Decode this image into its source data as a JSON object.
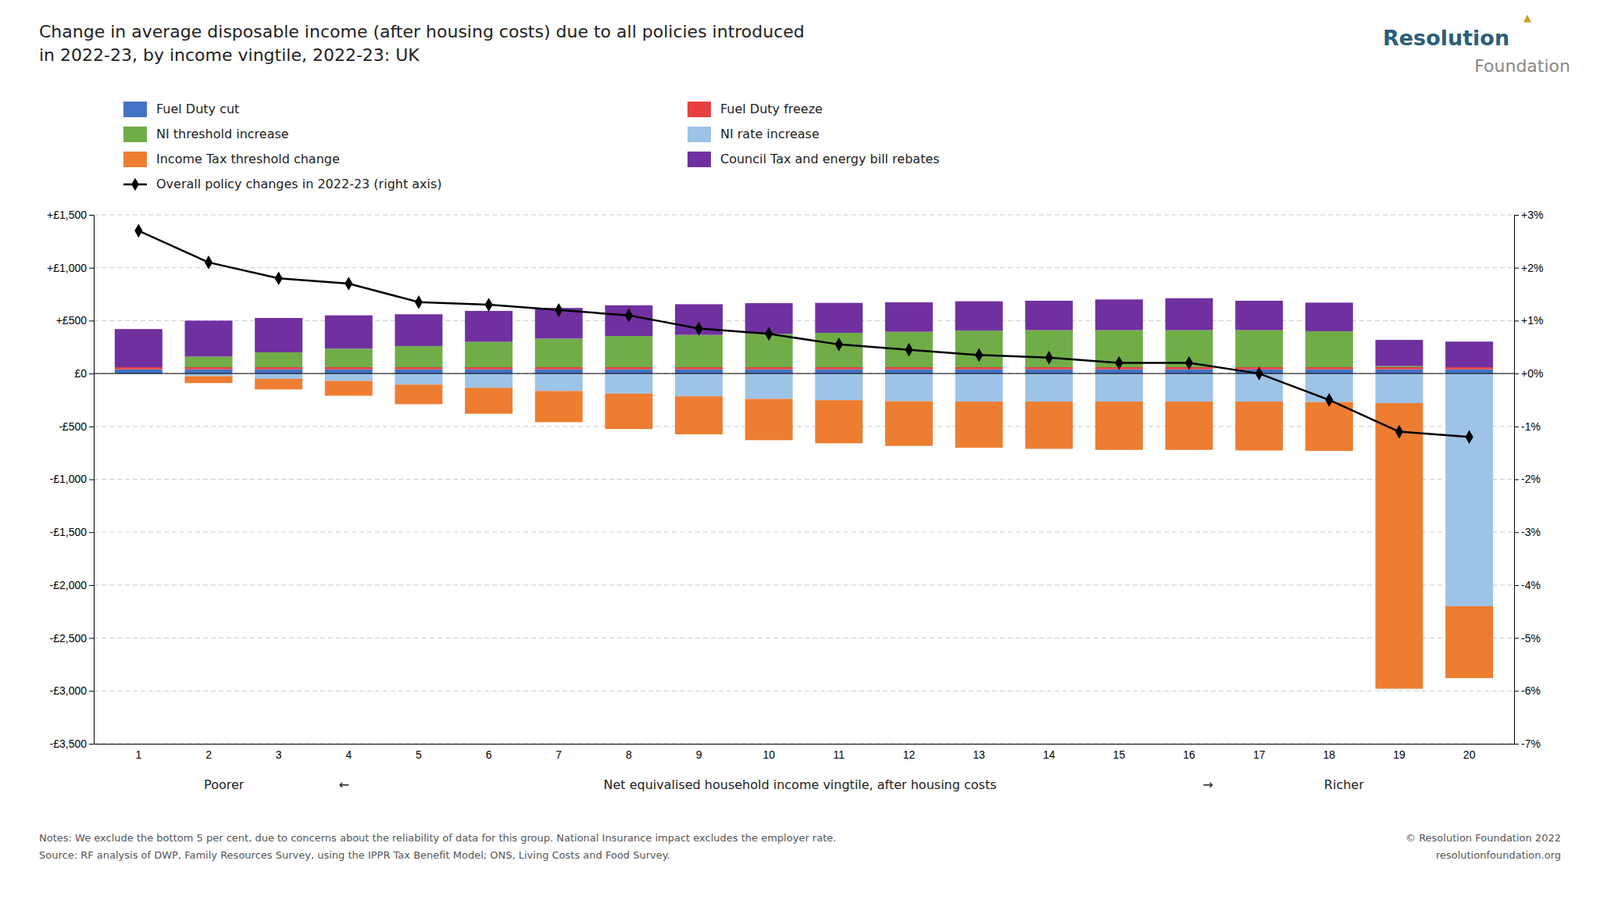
{
  "chart_data": {
    "type": "bar",
    "stacked": true,
    "title": "Change in average disposable income (after housing costs) due to all policies introduced\nin 2022-23, by income vingtile, 2022-23: UK",
    "xlabel": "Net equivalised household income vingtile, after housing costs",
    "annotations": [
      "Poorer",
      "←",
      "→",
      "Richer",
      "Notes: We exclude the bottom 5 per cent, due to concerns about the reliability of data for this group. National Insurance impact excludes the employer rate.",
      "Source: RF analysis of DWP, Family Resources Survey, using the IPPR Tax Benefit Model; ONS, Living Costs and Food Survey.",
      "© Resolution Foundation 2022",
      "resolutionfoundation.org",
      "Resolution",
      "Foundation",
      "▲"
    ],
    "categories": [
      "1",
      "2",
      "3",
      "4",
      "5",
      "6",
      "7",
      "8",
      "9",
      "10",
      "11",
      "12",
      "13",
      "14",
      "15",
      "16",
      "17",
      "18",
      "19",
      "20"
    ],
    "series": [
      {
        "name": "Fuel Duty cut",
        "color": "#4472c4",
        "values": [
          40,
          40,
          40,
          40,
          40,
          40,
          40,
          40,
          40,
          40,
          40,
          40,
          40,
          40,
          40,
          40,
          40,
          40,
          40,
          40
        ]
      },
      {
        "name": "Fuel Duty freeze",
        "color": "#e84040",
        "values": [
          20,
          20,
          20,
          20,
          20,
          20,
          20,
          20,
          20,
          20,
          20,
          20,
          20,
          20,
          20,
          20,
          20,
          20,
          20,
          20
        ]
      },
      {
        "name": "NI threshold increase",
        "color": "#70ad47",
        "values": [
          0,
          100,
          140,
          175,
          200,
          240,
          270,
          295,
          305,
          315,
          325,
          335,
          345,
          350,
          350,
          350,
          350,
          340,
          10,
          0
        ]
      },
      {
        "name": "NI rate increase",
        "color": "#9dc3e6",
        "values": [
          0,
          -25,
          -50,
          -70,
          -105,
          -135,
          -165,
          -190,
          -215,
          -240,
          -252,
          -262,
          -265,
          -265,
          -265,
          -265,
          -265,
          -270,
          -280,
          -2200
        ]
      },
      {
        "name": "Income Tax threshold change",
        "color": "#ed7d31",
        "values": [
          0,
          -65,
          -100,
          -140,
          -185,
          -245,
          -295,
          -335,
          -360,
          -390,
          -408,
          -422,
          -437,
          -447,
          -457,
          -457,
          -462,
          -462,
          -2700,
          -680
        ]
      },
      {
        "name": "Council Tax and energy bill rebates",
        "color": "#7030a0",
        "values": [
          360,
          340,
          325,
          315,
          300,
          292,
          290,
          290,
          290,
          290,
          283,
          278,
          278,
          278,
          290,
          302,
          278,
          270,
          248,
          242
        ]
      },
      {
        "name": "Overall policy changes in 2022-23 (right axis)",
        "type": "line",
        "axis": "y2",
        "color": "#000000",
        "marker": "diamond",
        "line_style": "solid",
        "values": [
          0.027,
          0.021,
          0.018,
          0.017,
          0.0135,
          0.013,
          0.012,
          0.011,
          0.0085,
          0.0075,
          0.0055,
          0.0045,
          0.0035,
          0.003,
          0.002,
          0.002,
          0.0,
          -0.005,
          -0.011,
          -0.012
        ]
      }
    ],
    "ylim": [
      -3500,
      1500
    ],
    "yticks": [
      {
        "value": -3500,
        "label": "-£3,500"
      },
      {
        "value": -3000,
        "label": "-£3,000"
      },
      {
        "value": -2500,
        "label": "-£2,500"
      },
      {
        "value": -2000,
        "label": "-£2,000"
      },
      {
        "value": -1500,
        "label": "-£1,500"
      },
      {
        "value": -1000,
        "label": "-£1,000"
      },
      {
        "value": -500,
        "label": "-£500"
      },
      {
        "value": 0,
        "label": "£0"
      },
      {
        "value": 500,
        "label": "+£500"
      },
      {
        "value": 1000,
        "label": "+£1,000"
      },
      {
        "value": 1500,
        "label": "+£1,500"
      }
    ],
    "y2lim": [
      -0.07,
      0.03
    ],
    "y2ticks": [
      {
        "value": -0.07,
        "label": "-7%"
      },
      {
        "value": -0.06,
        "label": "-6%"
      },
      {
        "value": -0.05,
        "label": "-5%"
      },
      {
        "value": -0.04,
        "label": "-4%"
      },
      {
        "value": -0.03,
        "label": "-3%"
      },
      {
        "value": -0.02,
        "label": "-2%"
      },
      {
        "value": -0.01,
        "label": "-1%"
      },
      {
        "value": 0,
        "label": "+0%"
      },
      {
        "value": 0.01,
        "label": "+1%"
      },
      {
        "value": 0.02,
        "label": "+2%"
      },
      {
        "value": 0.03,
        "label": "+3%"
      }
    ],
    "grid": true,
    "legend": "top"
  }
}
